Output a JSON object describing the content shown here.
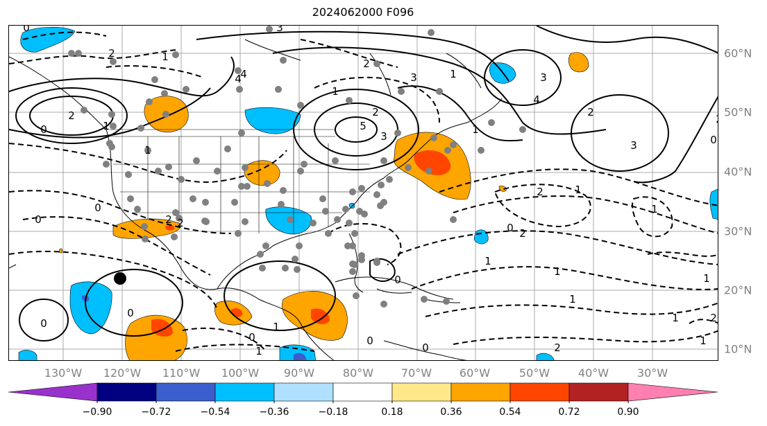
{
  "title": "2024062000 F096",
  "map": {
    "lon_labels": [
      "130°W",
      "120°W",
      "110°W",
      "100°W",
      "90°W",
      "80°W",
      "70°W",
      "60°W",
      "50°W",
      "40°W",
      "30°W"
    ],
    "lat_labels": [
      "60°N",
      "50°N",
      "40°N",
      "30°N",
      "20°N",
      "10°N"
    ],
    "contour_labels": [
      "0",
      "2",
      "1",
      "3",
      "4",
      "2",
      "1",
      "2",
      "1",
      "0",
      "4",
      "5",
      "3",
      "3",
      "2",
      "1",
      "3",
      "4",
      "2",
      "3",
      "0",
      "2",
      "1",
      "0",
      "0",
      "1",
      "2",
      "2",
      "0",
      "2",
      "0",
      "1",
      "2",
      "1",
      "1",
      "0",
      "0",
      "1",
      "2",
      "1",
      "2",
      "1",
      "1",
      "0",
      "1",
      "1",
      "0",
      "0",
      "1"
    ],
    "features": [
      "orange-positive-anomaly",
      "blue-negative-anomaly",
      "solid-contours-positive",
      "dashed-contours-negative",
      "coastlines",
      "state-borders",
      "station-dots",
      "black-marker"
    ]
  },
  "colorbar": {
    "tick_labels": [
      "−0.90",
      "−0.72",
      "−0.54",
      "−0.36",
      "−0.18",
      "0.18",
      "0.36",
      "0.54",
      "0.72",
      "0.90"
    ],
    "colors": [
      "#9932cc",
      "#000080",
      "#3a5fcd",
      "#00bfff",
      "#b0e0ff",
      "#ffffff",
      "#ffe88a",
      "#ffa500",
      "#ff4500",
      "#b22222",
      "#ff80b0"
    ]
  }
}
